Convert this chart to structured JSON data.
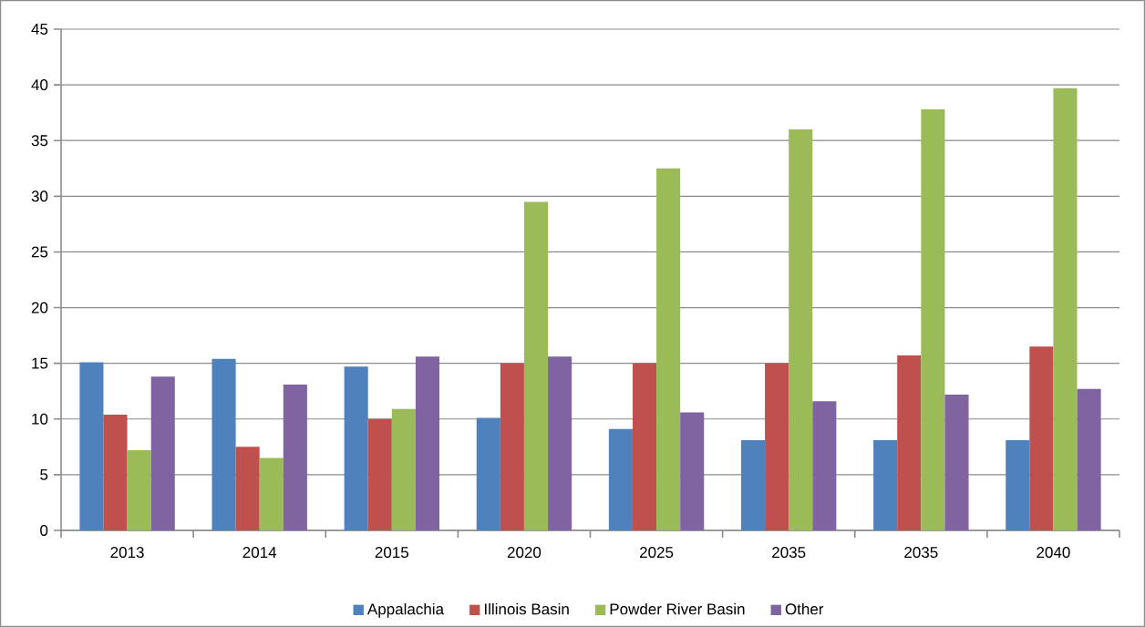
{
  "chart_data": {
    "type": "bar",
    "categories": [
      "2013",
      "2014",
      "2015",
      "2020",
      "2025",
      "2035",
      "2035",
      "2040"
    ],
    "series": [
      {
        "name": "Appalachia",
        "color": "#4f81bd",
        "values": [
          15.1,
          15.4,
          14.7,
          10.1,
          9.1,
          8.1,
          8.1,
          8.1
        ]
      },
      {
        "name": "Illinois Basin",
        "color": "#c0504d",
        "values": [
          10.4,
          7.5,
          10.0,
          15.0,
          15.0,
          15.0,
          15.7,
          16.5
        ]
      },
      {
        "name": "Powder River Basin",
        "color": "#9bbb59",
        "values": [
          7.2,
          6.5,
          10.9,
          29.5,
          32.5,
          36.0,
          37.8,
          39.7
        ]
      },
      {
        "name": "Other",
        "color": "#8064a2",
        "values": [
          13.8,
          13.1,
          15.6,
          15.6,
          10.6,
          11.6,
          12.2,
          12.7
        ]
      }
    ],
    "ylim": [
      0,
      45
    ],
    "yticks": [
      0,
      5,
      10,
      15,
      20,
      25,
      30,
      35,
      40,
      45
    ],
    "grid": "y",
    "legend": "bottom"
  }
}
